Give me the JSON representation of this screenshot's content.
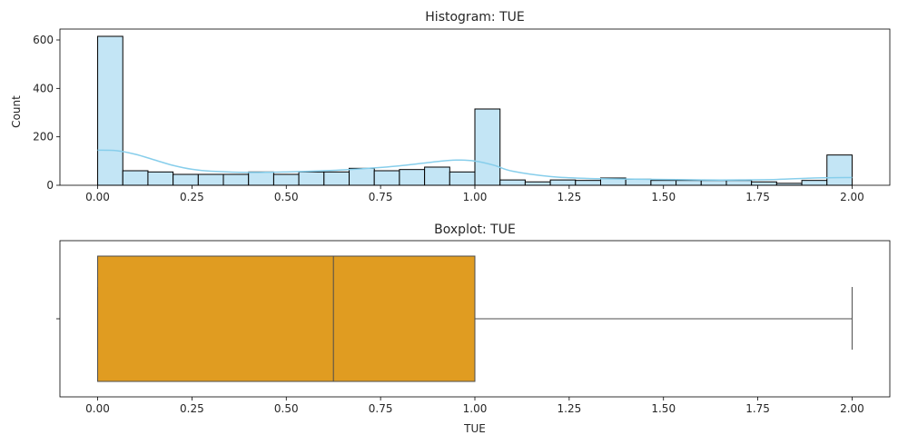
{
  "chart_data": [
    {
      "type": "bar",
      "title": "Histogram: TUE",
      "xlabel": "",
      "ylabel": "Count",
      "xlim": [
        -0.1,
        2.1
      ],
      "ylim": [
        0,
        645
      ],
      "x_ticks": [
        0.0,
        0.25,
        0.5,
        0.75,
        1.0,
        1.25,
        1.5,
        1.75,
        2.0
      ],
      "x_tick_labels": [
        "0.00",
        "0.25",
        "0.50",
        "0.75",
        "1.00",
        "1.25",
        "1.50",
        "1.75",
        "2.00"
      ],
      "y_ticks": [
        0,
        200,
        400,
        600
      ],
      "y_tick_labels": [
        "0",
        "200",
        "400",
        "600"
      ],
      "bin_width": 0.0667,
      "bin_starts": [
        0.0,
        0.0667,
        0.1333,
        0.2,
        0.2667,
        0.3333,
        0.4,
        0.4667,
        0.5333,
        0.6,
        0.6667,
        0.7333,
        0.8,
        0.8667,
        0.9333,
        1.0,
        1.0667,
        1.1333,
        1.2,
        1.2667,
        1.3333,
        1.4,
        1.4667,
        1.5333,
        1.6,
        1.6667,
        1.7333,
        1.8,
        1.8667,
        1.9333
      ],
      "values": [
        615,
        60,
        55,
        45,
        45,
        45,
        55,
        45,
        55,
        55,
        70,
        60,
        65,
        75,
        55,
        315,
        22,
        14,
        22,
        20,
        30,
        25,
        20,
        20,
        20,
        20,
        14,
        8,
        20,
        125
      ],
      "kde": {
        "x": [
          0.0,
          0.05,
          0.1,
          0.15,
          0.2,
          0.25,
          0.3,
          0.4,
          0.5,
          0.6,
          0.7,
          0.8,
          0.9,
          0.95,
          1.0,
          1.05,
          1.1,
          1.2,
          1.3,
          1.4,
          1.5,
          1.6,
          1.7,
          1.8,
          1.9,
          2.0
        ],
        "y": [
          145,
          143,
          128,
          105,
          82,
          66,
          58,
          53,
          55,
          60,
          68,
          80,
          98,
          104,
          100,
          83,
          58,
          36,
          28,
          26,
          24,
          22,
          22,
          24,
          30,
          32
        ]
      },
      "colors": {
        "bar_fill": "#c3e5f5",
        "bar_edge": "#000000",
        "kde_line": "#87ceeb"
      }
    },
    {
      "type": "boxplot",
      "title": "Boxplot: TUE",
      "xlabel": "TUE",
      "ylabel": "",
      "xlim": [
        -0.1,
        2.1
      ],
      "x_ticks": [
        0.0,
        0.25,
        0.5,
        0.75,
        1.0,
        1.25,
        1.5,
        1.75,
        2.0
      ],
      "x_tick_labels": [
        "0.00",
        "0.25",
        "0.50",
        "0.75",
        "1.00",
        "1.25",
        "1.50",
        "1.75",
        "2.00"
      ],
      "min": 0.0,
      "q1": 0.0,
      "median": 0.625,
      "q3": 1.0,
      "max": 2.0,
      "colors": {
        "box_fill": "#e09c21",
        "line": "#4d4d4d"
      }
    }
  ]
}
